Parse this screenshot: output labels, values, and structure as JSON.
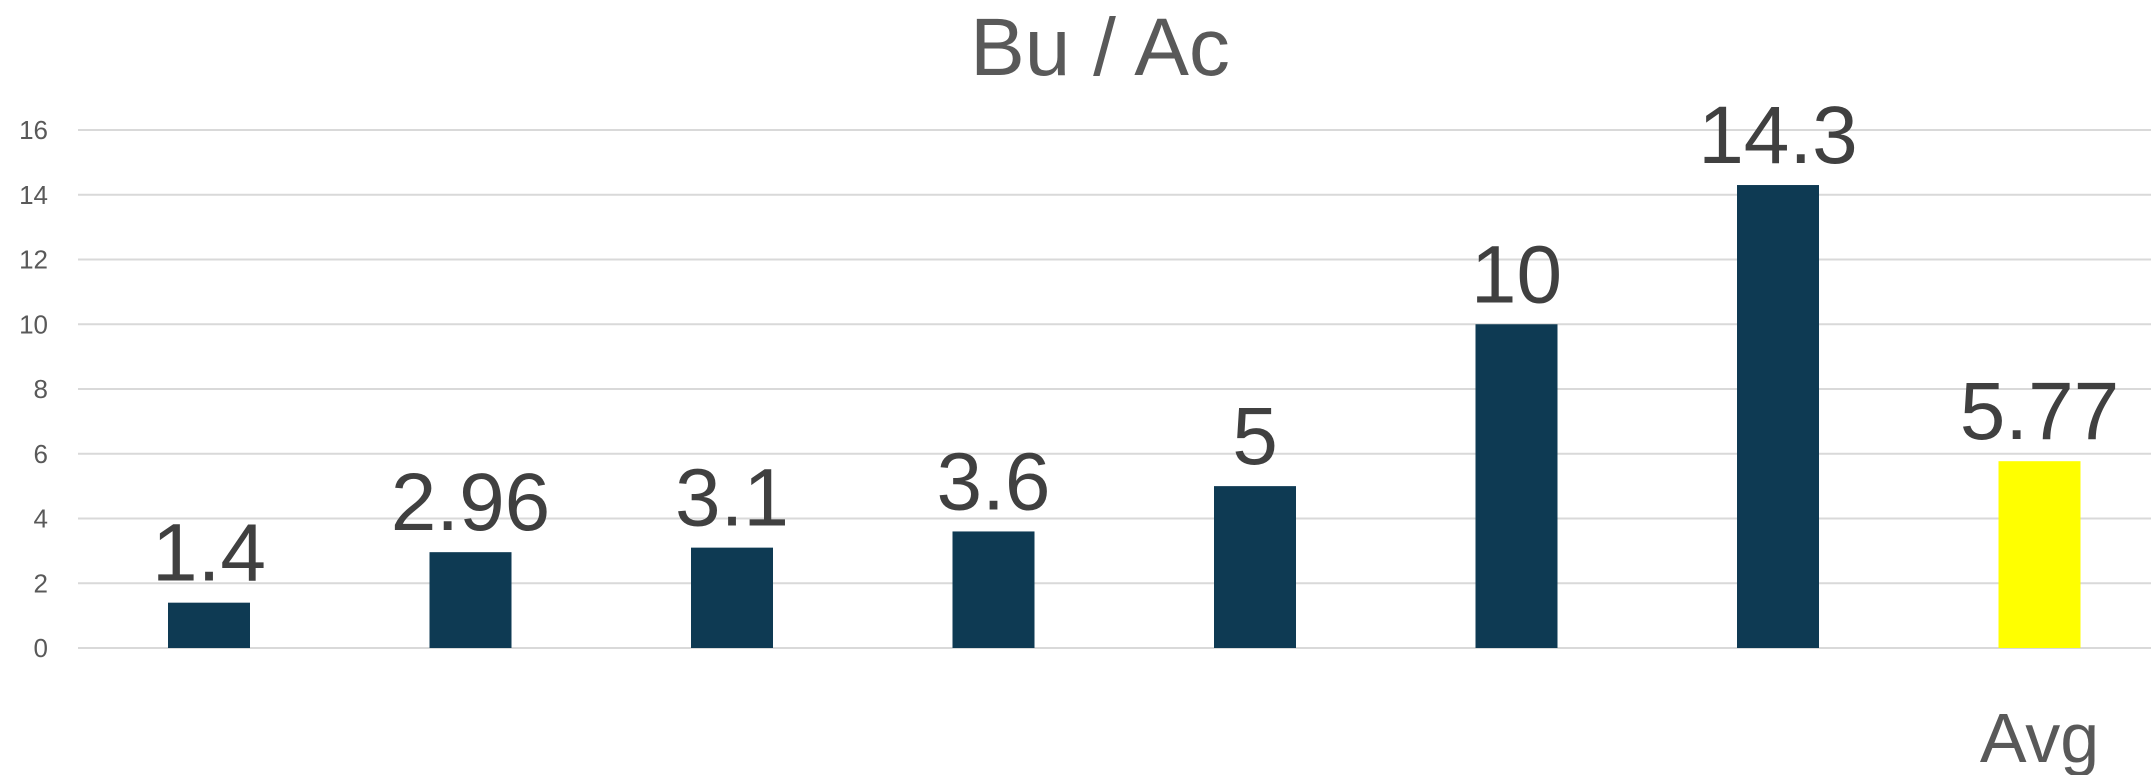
{
  "chart_data": {
    "type": "bar",
    "title": "Bu / Ac",
    "categories": [
      "",
      "",
      "",
      "",
      "",
      "",
      "",
      "Avg"
    ],
    "values": [
      1.4,
      2.96,
      3.1,
      3.6,
      5,
      10,
      14.3,
      5.77
    ],
    "data_labels": [
      "1.4",
      "2.96",
      "3.1",
      "3.6",
      "5",
      "10",
      "14.3",
      "5.77"
    ],
    "bar_colors": [
      "#0e3a53",
      "#0e3a53",
      "#0e3a53",
      "#0e3a53",
      "#0e3a53",
      "#0e3a53",
      "#0e3a53",
      "#ffff00"
    ],
    "ylim": [
      0,
      16
    ],
    "yticks": [
      0,
      2,
      4,
      6,
      8,
      10,
      12,
      14,
      16
    ],
    "grid": true,
    "xlabel": "",
    "ylabel": ""
  }
}
